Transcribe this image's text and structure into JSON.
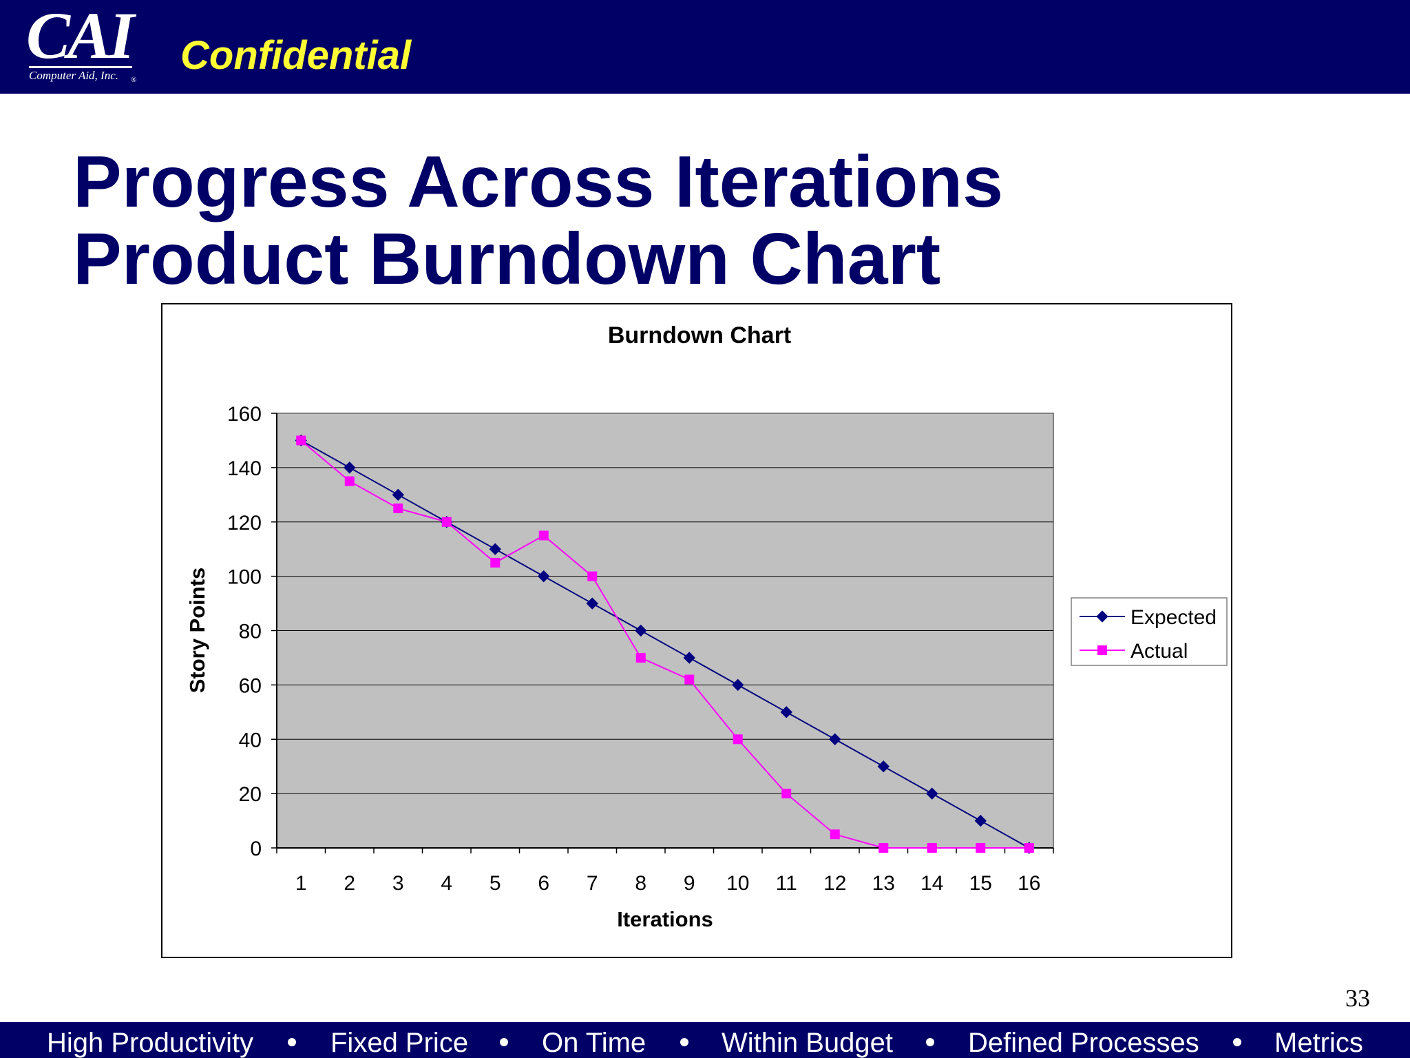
{
  "header": {
    "logo_text": "CAI",
    "logo_subtext": "Computer Aid, Inc.",
    "logo_reg": "®",
    "confidential": "Confidential",
    "bar_color": "#000066",
    "confidential_color": "#FFFF33"
  },
  "slide": {
    "title_line1": "Progress Across Iterations",
    "title_line2": "Product Burndown Chart",
    "page_number": "33"
  },
  "footer": {
    "items": [
      "High Productivity",
      "Fixed Price",
      "On Time",
      "Within Budget",
      "Defined Processes",
      "Metrics"
    ]
  },
  "chart_data": {
    "type": "line",
    "title": "Burndown Chart",
    "xlabel": "Iterations",
    "ylabel": "Story Points",
    "categories": [
      "1",
      "2",
      "3",
      "4",
      "5",
      "6",
      "7",
      "8",
      "9",
      "10",
      "11",
      "12",
      "13",
      "14",
      "15",
      "16"
    ],
    "yticks": [
      "0",
      "20",
      "40",
      "60",
      "80",
      "100",
      "120",
      "140",
      "160"
    ],
    "ylim": [
      0,
      160
    ],
    "grid": true,
    "legend": "right",
    "plot_background": "#C0C0C0",
    "series": [
      {
        "name": "Expected",
        "color": "#000080",
        "marker": "diamond",
        "values": [
          150,
          140,
          130,
          120,
          110,
          100,
          90,
          80,
          70,
          60,
          50,
          40,
          30,
          20,
          10,
          0
        ]
      },
      {
        "name": "Actual",
        "color": "#FF00FF",
        "marker": "square",
        "values": [
          150,
          135,
          125,
          120,
          105,
          115,
          100,
          70,
          62,
          40,
          20,
          5,
          0,
          0,
          0,
          0
        ]
      }
    ]
  }
}
